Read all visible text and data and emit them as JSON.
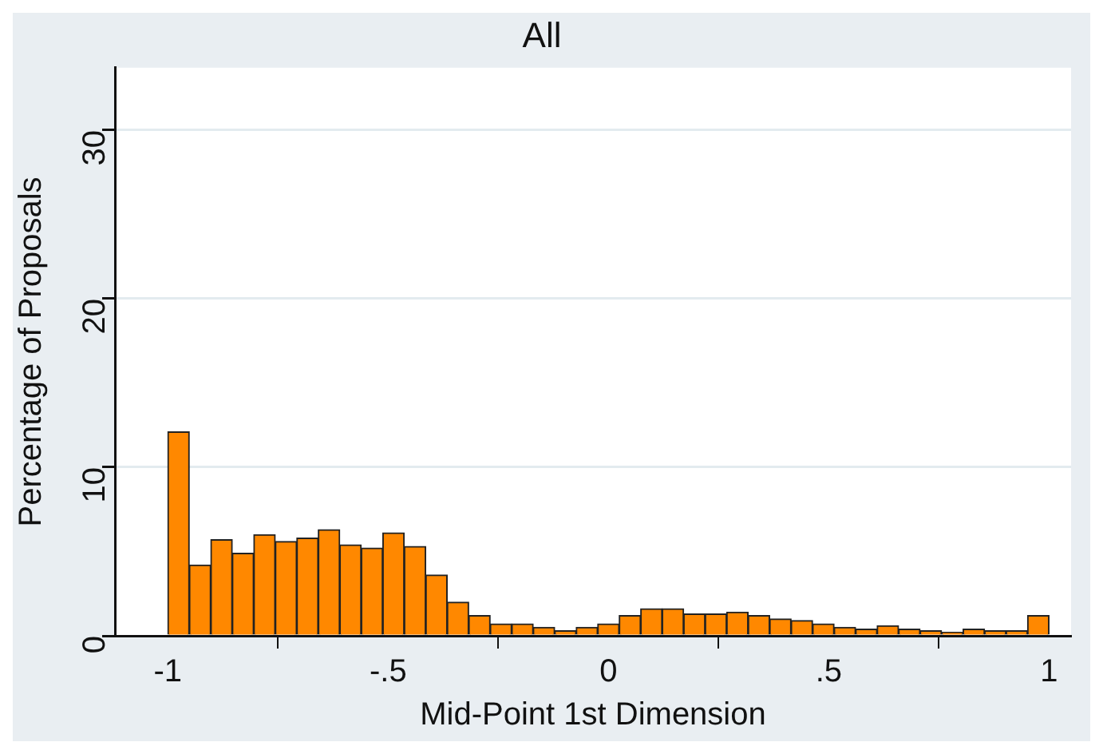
{
  "chart_data": {
    "type": "histogram",
    "title": "All",
    "xlabel": "Mid-Point 1st Dimension",
    "ylabel": "Percentage of Proposals",
    "bins": [
      -1,
      -0.9512,
      -0.9024,
      -0.8537,
      -0.8049,
      -0.7561,
      -0.7073,
      -0.6585,
      -0.6098,
      -0.561,
      -0.5122,
      -0.4634,
      -0.4146,
      -0.3659,
      -0.3171,
      -0.2683,
      -0.2195,
      -0.1707,
      -0.122,
      -0.0732,
      -0.0244,
      0.0244,
      0.0732,
      0.122,
      0.1707,
      0.2195,
      0.2683,
      0.3171,
      0.3659,
      0.4146,
      0.4634,
      0.5122,
      0.561,
      0.6098,
      0.6585,
      0.7073,
      0.7561,
      0.8049,
      0.8537,
      0.9024,
      0.9512,
      1
    ],
    "values": [
      12.1,
      4.2,
      5.7,
      4.9,
      6.0,
      5.6,
      5.8,
      6.3,
      5.4,
      5.2,
      6.1,
      5.3,
      3.6,
      2.0,
      1.2,
      0.7,
      0.7,
      0.5,
      0.3,
      0.5,
      0.7,
      1.2,
      1.6,
      1.6,
      1.3,
      1.3,
      1.4,
      1.2,
      1.0,
      0.9,
      0.7,
      0.5,
      0.4,
      0.6,
      0.4,
      0.3,
      0.2,
      0.4,
      0.3,
      0.3,
      1.2
    ],
    "color": "#ff8800",
    "xlim": [
      -1.12,
      1.05
    ],
    "xticks": [
      {
        "value": -1,
        "label": "-1"
      },
      {
        "value": -0.5,
        "label": "-.5"
      },
      0,
      {
        "value": 0.5,
        "label": ".5"
      },
      1
    ],
    "ylim": [
      0,
      33.7
    ],
    "yticks": [
      0,
      10,
      20,
      30
    ],
    "grid": "y"
  }
}
